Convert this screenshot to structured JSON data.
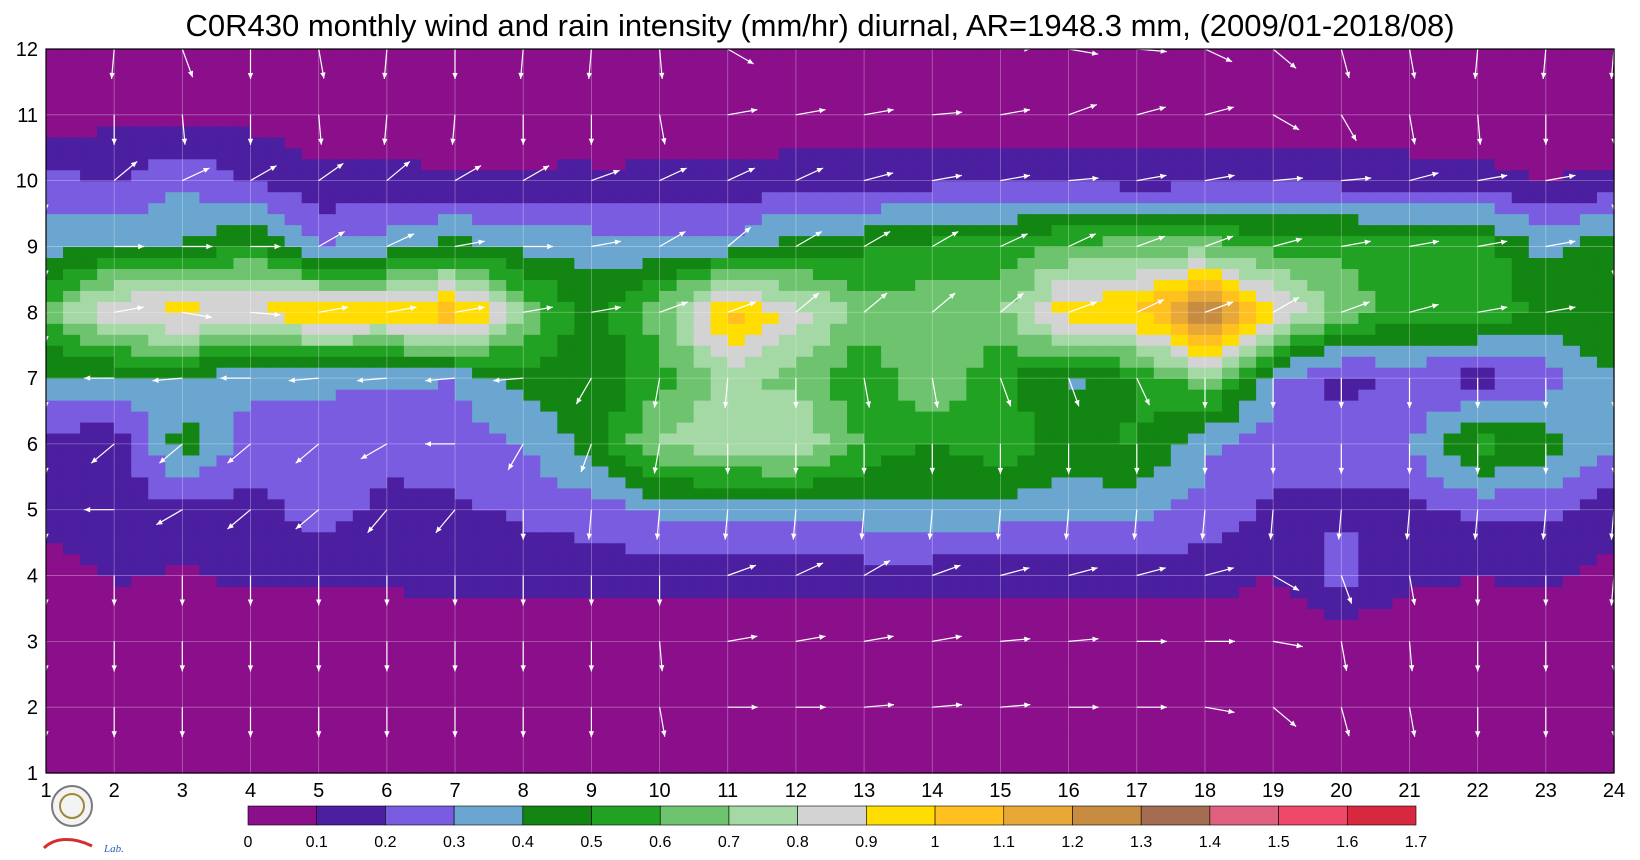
{
  "chart_data": {
    "type": "heatmap",
    "title": "C0R430 monthly wind and rain intensity (mm/hr) diurnal, AR=1948.3 mm, (2009/01-2018/08)",
    "x": [
      1,
      2,
      3,
      4,
      5,
      6,
      7,
      8,
      9,
      10,
      11,
      12,
      13,
      14,
      15,
      16,
      17,
      18,
      19,
      20,
      21,
      22,
      23,
      24
    ],
    "y": [
      1,
      2,
      3,
      4,
      5,
      6,
      7,
      8,
      9,
      10,
      11,
      12
    ],
    "xlim": [
      1,
      24
    ],
    "ylim": [
      1,
      12
    ],
    "grid": true,
    "x_tick_labels": [
      "1",
      "2",
      "3",
      "4",
      "5",
      "6",
      "7",
      "8",
      "9",
      "10",
      "11",
      "12",
      "13",
      "14",
      "15",
      "16",
      "17",
      "18",
      "19",
      "20",
      "21",
      "22",
      "23",
      "24"
    ],
    "y_tick_labels": [
      "1",
      "2",
      "3",
      "4",
      "5",
      "6",
      "7",
      "8",
      "9",
      "10",
      "11",
      "12"
    ],
    "colorbar": {
      "levels": [
        0,
        0.1,
        0.2,
        0.3,
        0.4,
        0.5,
        0.6,
        0.7,
        0.8,
        0.9,
        1,
        1.1,
        1.2,
        1.3,
        1.4,
        1.5,
        1.6,
        1.7
      ],
      "labels": [
        "0",
        "0.1",
        "0.2",
        "0.3",
        "0.4",
        "0.5",
        "0.6",
        "0.7",
        "0.8",
        "0.9",
        "1",
        "1.1",
        "1.2",
        "1.3",
        "1.4",
        "1.5",
        "1.6",
        "1.7"
      ],
      "colors": [
        "#8b0f8b",
        "#4b1fa0",
        "#7a5ce0",
        "#6aa6d0",
        "#138513",
        "#22a222",
        "#6ec46e",
        "#a4d8a4",
        "#d3d3d3",
        "#ffdd00",
        "#ffc020",
        "#e8a838",
        "#c88c40",
        "#a46c50",
        "#e06080",
        "#f04868",
        "#d82840"
      ]
    },
    "rain_intensity": {
      "rows_y": [
        12,
        11,
        10,
        9,
        8,
        7,
        6,
        5,
        4,
        3,
        2,
        1
      ],
      "values": [
        [
          0.02,
          0.02,
          0.02,
          0.02,
          0.02,
          0.02,
          0.02,
          0.02,
          0.02,
          0.02,
          0.02,
          0.02,
          0.02,
          0.02,
          0.02,
          0.02,
          0.02,
          0.02,
          0.02,
          0.02,
          0.02,
          0.02,
          0.02,
          0.02
        ],
        [
          0.04,
          0.08,
          0.07,
          0.07,
          0.05,
          0.04,
          0.04,
          0.04,
          0.04,
          0.04,
          0.04,
          0.04,
          0.04,
          0.04,
          0.04,
          0.04,
          0.04,
          0.04,
          0.04,
          0.04,
          0.04,
          0.04,
          0.04,
          0.04
        ],
        [
          0.24,
          0.18,
          0.28,
          0.19,
          0.12,
          0.13,
          0.11,
          0.12,
          0.12,
          0.12,
          0.13,
          0.15,
          0.16,
          0.17,
          0.17,
          0.18,
          0.15,
          0.17,
          0.17,
          0.17,
          0.14,
          0.13,
          0.1,
          0.12
        ],
        [
          0.34,
          0.42,
          0.4,
          0.52,
          0.3,
          0.35,
          0.45,
          0.36,
          0.36,
          0.32,
          0.34,
          0.46,
          0.48,
          0.53,
          0.53,
          0.62,
          0.66,
          0.65,
          0.57,
          0.57,
          0.57,
          0.57,
          0.36,
          0.49
        ],
        [
          0.62,
          0.92,
          0.95,
          0.92,
          0.98,
          0.95,
          1.1,
          0.7,
          0.45,
          0.65,
          1.05,
          0.85,
          0.66,
          0.66,
          0.68,
          0.98,
          1.0,
          1.32,
          0.92,
          0.66,
          0.55,
          0.58,
          0.47,
          0.5
        ],
        [
          0.38,
          0.36,
          0.37,
          0.32,
          0.33,
          0.32,
          0.3,
          0.45,
          0.4,
          0.56,
          0.74,
          0.66,
          0.52,
          0.7,
          0.52,
          0.38,
          0.48,
          0.7,
          0.32,
          0.15,
          0.25,
          0.15,
          0.25,
          0.4
        ],
        [
          0.16,
          0.12,
          0.45,
          0.25,
          0.22,
          0.22,
          0.25,
          0.3,
          0.45,
          0.72,
          0.75,
          0.82,
          0.58,
          0.48,
          0.58,
          0.45,
          0.52,
          0.32,
          0.25,
          0.25,
          0.28,
          0.55,
          0.45,
          0.3
        ],
        [
          0.15,
          0.15,
          0.17,
          0.16,
          0.24,
          0.18,
          0.18,
          0.22,
          0.25,
          0.32,
          0.35,
          0.32,
          0.35,
          0.38,
          0.35,
          0.35,
          0.33,
          0.26,
          0.18,
          0.18,
          0.17,
          0.23,
          0.22,
          0.15
        ],
        [
          0.05,
          0.11,
          0.09,
          0.12,
          0.12,
          0.12,
          0.15,
          0.13,
          0.14,
          0.13,
          0.14,
          0.15,
          0.15,
          0.14,
          0.14,
          0.13,
          0.15,
          0.15,
          0.1,
          0.25,
          0.12,
          0.1,
          0.12,
          0.06
        ],
        [
          0.02,
          0.02,
          0.02,
          0.02,
          0.02,
          0.02,
          0.02,
          0.02,
          0.02,
          0.02,
          0.02,
          0.02,
          0.02,
          0.02,
          0.02,
          0.02,
          0.02,
          0.02,
          0.02,
          0.02,
          0.02,
          0.02,
          0.02,
          0.02
        ],
        [
          0.02,
          0.02,
          0.02,
          0.02,
          0.02,
          0.02,
          0.02,
          0.02,
          0.02,
          0.02,
          0.02,
          0.02,
          0.02,
          0.02,
          0.02,
          0.02,
          0.02,
          0.02,
          0.02,
          0.02,
          0.02,
          0.02,
          0.02,
          0.02
        ],
        [
          0.02,
          0.02,
          0.02,
          0.02,
          0.02,
          0.02,
          0.02,
          0.02,
          0.08,
          0.03,
          0.02,
          0.02,
          0.02,
          0.02,
          0.02,
          0.02,
          0.02,
          0.02,
          0.02,
          0.02,
          0.02,
          0.02,
          0.02,
          0.02
        ]
      ]
    },
    "wind_vectors": {
      "rows_y": [
        12,
        11,
        10,
        9,
        8,
        7,
        6,
        5,
        4,
        3,
        2,
        1
      ],
      "angle_deg": [
        [
          -95,
          -95,
          -70,
          -90,
          -80,
          -95,
          -90,
          -95,
          -95,
          -85,
          -30,
          15,
          20,
          10,
          0,
          -10,
          -5,
          -25,
          -40,
          -75,
          -80,
          -95,
          -95,
          -95
        ],
        [
          -95,
          -90,
          -85,
          -90,
          -85,
          -95,
          -95,
          -90,
          -90,
          -80,
          10,
          10,
          10,
          5,
          10,
          20,
          15,
          15,
          -30,
          -60,
          -80,
          -85,
          -90,
          -90
        ],
        [
          -90,
          40,
          25,
          30,
          35,
          40,
          30,
          30,
          20,
          25,
          25,
          25,
          15,
          10,
          10,
          5,
          10,
          10,
          5,
          5,
          15,
          10,
          10,
          -90
        ],
        [
          -90,
          0,
          0,
          0,
          30,
          25,
          10,
          0,
          10,
          30,
          40,
          30,
          30,
          30,
          25,
          25,
          20,
          20,
          15,
          10,
          10,
          10,
          10,
          -90
        ],
        [
          -90,
          10,
          -10,
          -5,
          10,
          10,
          10,
          10,
          10,
          20,
          20,
          40,
          40,
          40,
          40,
          20,
          25,
          20,
          30,
          20,
          15,
          10,
          10,
          0
        ],
        [
          -90,
          -180,
          -175,
          -180,
          -175,
          -175,
          -175,
          -175,
          -120,
          -100,
          -95,
          -90,
          -80,
          -80,
          -70,
          -70,
          -65,
          -90,
          -90,
          -90,
          -90,
          -90,
          -90,
          -90
        ],
        [
          -90,
          -140,
          -140,
          -140,
          -140,
          -150,
          -180,
          -120,
          -110,
          -100,
          -90,
          -90,
          -90,
          -90,
          -90,
          -90,
          -90,
          -90,
          -90,
          -90,
          -90,
          -90,
          -90,
          -90
        ],
        [
          -90,
          -180,
          -150,
          -140,
          -140,
          -130,
          -130,
          -90,
          -95,
          -95,
          -95,
          -95,
          -95,
          -95,
          -95,
          -95,
          -95,
          -95,
          -95,
          -95,
          -95,
          -95,
          -95,
          -95
        ],
        [
          -90,
          -90,
          -90,
          -90,
          -90,
          -90,
          -90,
          -90,
          -90,
          -90,
          20,
          25,
          30,
          20,
          15,
          15,
          15,
          15,
          -30,
          -70,
          -80,
          -90,
          -90,
          -95
        ],
        [
          -90,
          -90,
          -90,
          -90,
          -90,
          -90,
          -90,
          -90,
          -90,
          -85,
          10,
          10,
          10,
          10,
          5,
          5,
          0,
          0,
          -10,
          -80,
          -85,
          -90,
          -90,
          -90
        ],
        [
          -90,
          -90,
          -90,
          -90,
          -90,
          -90,
          -90,
          -90,
          -90,
          -80,
          0,
          0,
          5,
          5,
          5,
          0,
          0,
          -10,
          -40,
          -75,
          -80,
          -90,
          -90,
          -90
        ],
        [
          -90,
          -90,
          -90,
          -90,
          -90,
          -90,
          -90,
          -90,
          -90,
          -70,
          -60,
          -80,
          -90,
          -90,
          -90,
          -90,
          -90,
          -90,
          -90,
          -90,
          -90,
          -90,
          -90,
          -90
        ]
      ]
    }
  },
  "logo": {
    "name": "severe-storm-lab-logo",
    "text": "Lab."
  }
}
